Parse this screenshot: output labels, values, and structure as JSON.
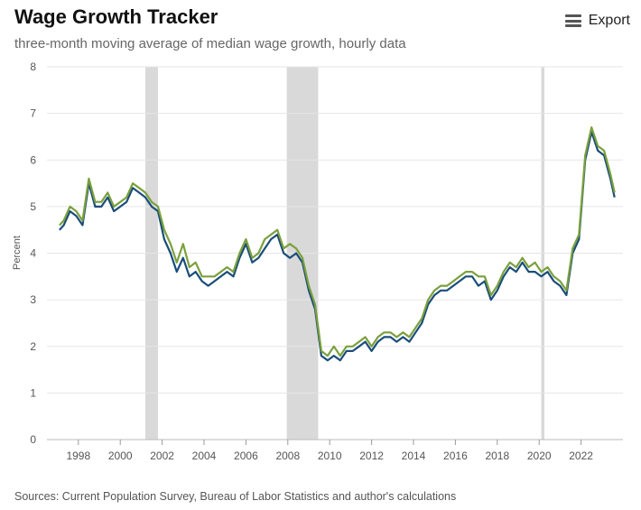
{
  "header": {
    "title": "Wage Growth Tracker",
    "subtitle": "three-month moving average of median wage growth, hourly data",
    "export_label": "Export"
  },
  "footer": {
    "source": "Sources: Current Population Survey, Bureau of Labor Statistics and author's calculations"
  },
  "colors": {
    "series_a": "#1a4d7a",
    "series_b": "#7aa03c",
    "recession": "#d9d9d9",
    "grid": "#e6e6e6"
  },
  "chart_data": {
    "type": "line",
    "title": "Wage Growth Tracker",
    "subtitle": "three-month moving average of median wage growth, hourly data",
    "xlabel": "",
    "ylabel": "Percent",
    "xlim": [
      1996.5,
      2024.0
    ],
    "ylim": [
      0,
      8
    ],
    "yticks": [
      "0",
      "1",
      "2",
      "3",
      "4",
      "5",
      "6",
      "7",
      "8"
    ],
    "xticks": [
      "1998",
      "2000",
      "2002",
      "2004",
      "2006",
      "2008",
      "2010",
      "2012",
      "2014",
      "2016",
      "2018",
      "2020",
      "2022"
    ],
    "grid": true,
    "recessions": [
      [
        2001.2,
        2001.8
      ],
      [
        2007.95,
        2009.45
      ],
      [
        2020.1,
        2020.25
      ]
    ],
    "series": [
      {
        "x": [
          1997.1,
          1997.3,
          1997.6,
          1997.9,
          1998.2,
          1998.5,
          1998.8,
          1999.1,
          1999.4,
          1999.7,
          2000.0,
          2000.3,
          2000.6,
          2000.9,
          2001.2,
          2001.5,
          2001.8,
          2002.1,
          2002.4,
          2002.7,
          2003.0,
          2003.3,
          2003.6,
          2003.9,
          2004.2,
          2004.5,
          2004.8,
          2005.1,
          2005.4,
          2005.7,
          2006.0,
          2006.3,
          2006.6,
          2006.9,
          2007.2,
          2007.5,
          2007.8,
          2008.1,
          2008.4,
          2008.7,
          2009.0,
          2009.3,
          2009.6,
          2009.9,
          2010.2,
          2010.5,
          2010.8,
          2011.1,
          2011.4,
          2011.7,
          2012.0,
          2012.3,
          2012.6,
          2012.9,
          2013.2,
          2013.5,
          2013.8,
          2014.1,
          2014.4,
          2014.7,
          2015.0,
          2015.3,
          2015.6,
          2015.9,
          2016.2,
          2016.5,
          2016.8,
          2017.1,
          2017.4,
          2017.7,
          2018.0,
          2018.3,
          2018.6,
          2018.9,
          2019.2,
          2019.5,
          2019.8,
          2020.1,
          2020.4,
          2020.7,
          2021.0,
          2021.3,
          2021.6,
          2021.9,
          2022.2,
          2022.5,
          2022.8,
          2023.1,
          2023.4,
          2023.6
        ],
        "values": [
          4.5,
          4.6,
          4.9,
          4.8,
          4.6,
          5.5,
          5.0,
          5.0,
          5.2,
          4.9,
          5.0,
          5.1,
          5.4,
          5.3,
          5.2,
          5.0,
          4.9,
          4.3,
          4.0,
          3.6,
          3.9,
          3.5,
          3.6,
          3.4,
          3.3,
          3.4,
          3.5,
          3.6,
          3.5,
          3.9,
          4.2,
          3.8,
          3.9,
          4.1,
          4.3,
          4.4,
          4.0,
          3.9,
          4.0,
          3.8,
          3.2,
          2.8,
          1.8,
          1.7,
          1.8,
          1.7,
          1.9,
          1.9,
          2.0,
          2.1,
          1.9,
          2.1,
          2.2,
          2.2,
          2.1,
          2.2,
          2.1,
          2.3,
          2.5,
          2.9,
          3.1,
          3.2,
          3.2,
          3.3,
          3.4,
          3.5,
          3.5,
          3.3,
          3.4,
          3.0,
          3.2,
          3.5,
          3.7,
          3.6,
          3.8,
          3.6,
          3.6,
          3.5,
          3.6,
          3.4,
          3.3,
          3.1,
          4.0,
          4.3,
          6.0,
          6.6,
          6.2,
          6.1,
          5.6,
          5.2
        ]
      },
      {
        "x": [
          1997.1,
          1997.3,
          1997.6,
          1997.9,
          1998.2,
          1998.5,
          1998.8,
          1999.1,
          1999.4,
          1999.7,
          2000.0,
          2000.3,
          2000.6,
          2000.9,
          2001.2,
          2001.5,
          2001.8,
          2002.1,
          2002.4,
          2002.7,
          2003.0,
          2003.3,
          2003.6,
          2003.9,
          2004.2,
          2004.5,
          2004.8,
          2005.1,
          2005.4,
          2005.7,
          2006.0,
          2006.3,
          2006.6,
          2006.9,
          2007.2,
          2007.5,
          2007.8,
          2008.1,
          2008.4,
          2008.7,
          2009.0,
          2009.3,
          2009.6,
          2009.9,
          2010.2,
          2010.5,
          2010.8,
          2011.1,
          2011.4,
          2011.7,
          2012.0,
          2012.3,
          2012.6,
          2012.9,
          2013.2,
          2013.5,
          2013.8,
          2014.1,
          2014.4,
          2014.7,
          2015.0,
          2015.3,
          2015.6,
          2015.9,
          2016.2,
          2016.5,
          2016.8,
          2017.1,
          2017.4,
          2017.7,
          2018.0,
          2018.3,
          2018.6,
          2018.9,
          2019.2,
          2019.5,
          2019.8,
          2020.1,
          2020.4,
          2020.7,
          2021.0,
          2021.3,
          2021.6,
          2021.9,
          2022.2,
          2022.5,
          2022.8,
          2023.1,
          2023.4,
          2023.6
        ],
        "values": [
          4.6,
          4.7,
          5.0,
          4.9,
          4.7,
          5.6,
          5.1,
          5.1,
          5.3,
          5.0,
          5.1,
          5.2,
          5.5,
          5.4,
          5.3,
          5.1,
          5.0,
          4.5,
          4.2,
          3.8,
          4.2,
          3.7,
          3.8,
          3.5,
          3.5,
          3.5,
          3.6,
          3.7,
          3.6,
          4.0,
          4.3,
          3.9,
          4.0,
          4.3,
          4.4,
          4.5,
          4.1,
          4.2,
          4.1,
          3.9,
          3.3,
          2.9,
          1.9,
          1.8,
          2.0,
          1.8,
          2.0,
          2.0,
          2.1,
          2.2,
          2.0,
          2.2,
          2.3,
          2.3,
          2.2,
          2.3,
          2.2,
          2.4,
          2.6,
          3.0,
          3.2,
          3.3,
          3.3,
          3.4,
          3.5,
          3.6,
          3.6,
          3.5,
          3.5,
          3.1,
          3.3,
          3.6,
          3.8,
          3.7,
          3.9,
          3.7,
          3.8,
          3.6,
          3.7,
          3.5,
          3.4,
          3.2,
          4.1,
          4.4,
          6.1,
          6.7,
          6.3,
          6.2,
          5.7,
          5.3
        ]
      }
    ]
  }
}
